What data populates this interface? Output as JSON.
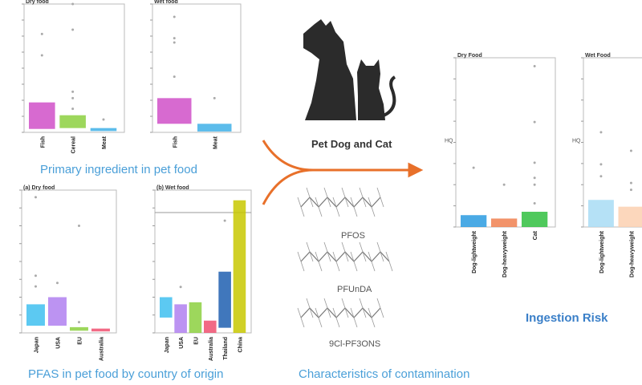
{
  "sections": {
    "primary_ingredient": "Primary ingredient in pet food",
    "country_of_origin": "PFAS in pet food by country of origin",
    "characteristics": "Characteristics of contamination",
    "ingestion_risk": "Ingestion Risk"
  },
  "center": {
    "pets_label": "Pet Dog and Cat",
    "molecules": [
      "PFOS",
      "PFUnDA",
      "9Cl-PF3ONS"
    ]
  },
  "colors": {
    "accent_text": "#4a9fd8",
    "arrow": "#e8702a",
    "silhouette": "#2b2b2b"
  },
  "chart_data": [
    {
      "type": "box",
      "title": "Dry food",
      "ylim": [
        0,
        300
      ],
      "categories": [
        "Fish",
        "Cereal",
        "Meat"
      ],
      "boxes": [
        {
          "q1": 8,
          "q3": 70,
          "color": "#d050c8",
          "outliers": [
            180,
            230
          ]
        },
        {
          "q1": 10,
          "q3": 40,
          "color": "#8cd040",
          "outliers": [
            55,
            80,
            95,
            240,
            300
          ]
        },
        {
          "q1": 3,
          "q3": 10,
          "color": "#40b0e8",
          "outliers": [
            30
          ]
        }
      ]
    },
    {
      "type": "box",
      "title": "Wet food",
      "ylim": [
        0,
        300
      ],
      "categories": [
        "Fish",
        "Meat"
      ],
      "boxes": [
        {
          "q1": 20,
          "q3": 80,
          "color": "#d050c8",
          "outliers": [
            130,
            210,
            220,
            270
          ]
        },
        {
          "q1": 2,
          "q3": 20,
          "color": "#40b0e8",
          "outliers": [
            80
          ]
        }
      ]
    },
    {
      "type": "box",
      "title": "(a) Dry food",
      "ylim": [
        0,
        200
      ],
      "categories": [
        "Japan",
        "USA",
        "EU",
        "Australia"
      ],
      "boxes": [
        {
          "q1": 10,
          "q3": 40,
          "color": "#40c0f0",
          "outliers": [
            65,
            80,
            190
          ]
        },
        {
          "q1": 10,
          "q3": 50,
          "color": "#b080f0",
          "outliers": [
            70
          ]
        },
        {
          "q1": 3,
          "q3": 8,
          "color": "#8cd040",
          "outliers": [
            15,
            150
          ]
        },
        {
          "q1": 2,
          "q3": 6,
          "color": "#f05070",
          "outliers": []
        }
      ]
    },
    {
      "type": "box",
      "title": "(b) Wet food",
      "ylim": [
        0,
        140
      ],
      "categories": [
        "Japan",
        "USA",
        "EU",
        "Australia",
        "Thailand",
        "China"
      ],
      "boxes": [
        {
          "q1": 15,
          "q3": 35,
          "color": "#40c0f0",
          "outliers": []
        },
        {
          "q1": 0,
          "q3": 28,
          "color": "#b080f0",
          "outliers": [
            45
          ]
        },
        {
          "q1": 0,
          "q3": 30,
          "color": "#8cd040",
          "outliers": []
        },
        {
          "q1": 0,
          "q3": 12,
          "color": "#f05070",
          "outliers": []
        },
        {
          "q1": 5,
          "q3": 60,
          "color": "#1f5fb0",
          "outliers": [
            110
          ]
        },
        {
          "q1": 0,
          "q3": 130,
          "color": "#c8c800",
          "outliers": []
        }
      ]
    },
    {
      "type": "box",
      "title": "Dry Food",
      "ylabel": "HQ",
      "ylim": [
        0,
        100
      ],
      "categories": [
        "Dog-lightweight",
        "Dog-heavyweight",
        "Cat"
      ],
      "boxes": [
        {
          "q1": 0,
          "q3": 7,
          "color": "#2a9be0",
          "outliers": [
            35
          ]
        },
        {
          "q1": 0,
          "q3": 5,
          "color": "#f08050",
          "outliers": [
            25
          ]
        },
        {
          "q1": 0,
          "q3": 9,
          "color": "#30c040",
          "outliers": [
            14,
            25,
            29,
            38,
            62,
            95
          ]
        }
      ]
    },
    {
      "type": "box",
      "title": "Wet Food",
      "ylabel": "HQ",
      "ylim": [
        0,
        100
      ],
      "categories": [
        "Dog-lightweight",
        "Dog-heavyweight"
      ],
      "boxes": [
        {
          "q1": 0,
          "q3": 16,
          "color": "#a8dcf4",
          "outliers": [
            30,
            37,
            56
          ]
        },
        {
          "q1": 0,
          "q3": 12,
          "color": "#fcd0b0",
          "outliers": [
            22,
            26,
            45
          ]
        }
      ]
    }
  ]
}
